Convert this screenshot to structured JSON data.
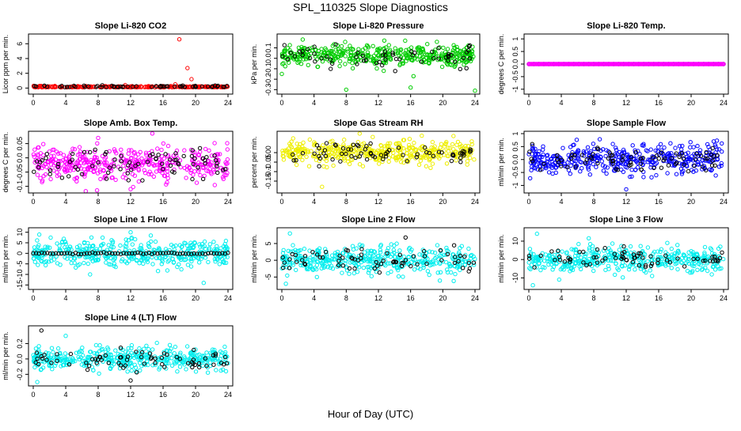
{
  "page": {
    "title": "SPL_110325  Slope Diagnostics",
    "xlabel": "Hour of Day (UTC)"
  },
  "chart_data": [
    {
      "type": "scatter",
      "title": "Slope Li-820 CO2",
      "ylabel": "Licor ppm per min.",
      "xlim": [
        0,
        24
      ],
      "ylim": [
        -0.5,
        7
      ],
      "xticks": [
        0,
        4,
        8,
        12,
        16,
        20,
        24
      ],
      "yticks": [
        0,
        2,
        4,
        6
      ],
      "spread": 0.08,
      "bias": 0.15,
      "series": [
        {
          "color": "#ff0000",
          "n": 230,
          "outliers": [
            [
              18,
              6.6
            ],
            [
              19,
              2.7
            ],
            [
              19.5,
              1.2
            ],
            [
              17.5,
              0.5
            ]
          ]
        },
        {
          "color": "#000000",
          "n": 60,
          "outliers": []
        }
      ]
    },
    {
      "type": "scatter",
      "title": "Slope Li-820 Pressure",
      "ylabel": "kPa per min.",
      "xlim": [
        0,
        24
      ],
      "ylim": [
        -0.32,
        0.21
      ],
      "xticks": [
        0,
        4,
        8,
        12,
        16,
        20,
        24
      ],
      "yticks": [
        -0.3,
        -0.2,
        -0.1,
        0.0,
        0.1
      ],
      "spread": 0.05,
      "bias": 0.03,
      "series": [
        {
          "color": "#00cc00",
          "n": 420,
          "outliers": [
            [
              0,
              -0.15
            ],
            [
              8,
              -0.3
            ],
            [
              16,
              -0.28
            ],
            [
              24,
              -0.31
            ]
          ]
        },
        {
          "color": "#000000",
          "n": 60,
          "outliers": []
        }
      ]
    },
    {
      "type": "scatter",
      "title": "Slope Li-820 Temp.",
      "ylabel": "degrees C per min.",
      "xlim": [
        0,
        24
      ],
      "ylim": [
        -1.1,
        1.1
      ],
      "xticks": [
        0,
        4,
        8,
        12,
        16,
        20,
        24
      ],
      "yticks": [
        -1.0,
        -0.5,
        0.0,
        0.5,
        1.0
      ],
      "spread": 0.0,
      "bias": 0.0,
      "series": [
        {
          "color": "#000000",
          "n": 40,
          "outliers": []
        },
        {
          "color": "#ff00ff",
          "n": 240,
          "outliers": []
        }
      ]
    },
    {
      "type": "scatter",
      "title": "Slope Amb. Box Temp.",
      "ylabel": "degrees C per min.",
      "xlim": [
        0,
        24
      ],
      "ylim": [
        -0.115,
        0.085
      ],
      "xticks": [
        0,
        4,
        8,
        12,
        16,
        20,
        24
      ],
      "yticks": [
        -0.1,
        -0.05,
        0.0,
        0.05
      ],
      "spread": 0.03,
      "bias": -0.02,
      "series": [
        {
          "color": "#ff00ff",
          "n": 420,
          "outliers": [
            [
              12,
              -0.11
            ],
            [
              8,
              0.07
            ]
          ]
        },
        {
          "color": "#000000",
          "n": 80,
          "outliers": []
        }
      ]
    },
    {
      "type": "scatter",
      "title": "Slope Gas Stream RH",
      "ylabel": "percent per min.",
      "xlim": [
        0,
        24
      ],
      "ylim": [
        -0.2,
        0.1
      ],
      "xticks": [
        0,
        4,
        8,
        12,
        16,
        20,
        24
      ],
      "yticks": [
        -0.15,
        -0.1,
        -0.05,
        0.0
      ],
      "spread": 0.03,
      "bias": 0.0,
      "series": [
        {
          "color": "#eeee00",
          "n": 420,
          "outliers": [
            [
              5,
              -0.18
            ]
          ]
        },
        {
          "color": "#000000",
          "n": 70,
          "outliers": []
        }
      ]
    },
    {
      "type": "scatter",
      "title": "Slope Sample Flow",
      "ylabel": "ml/min per min.",
      "xlim": [
        0,
        24
      ],
      "ylim": [
        -1.2,
        1.0
      ],
      "xticks": [
        0,
        4,
        8,
        12,
        16,
        20,
        24
      ],
      "yticks": [
        -1.0,
        -0.5,
        0.0,
        0.5,
        1.0
      ],
      "spread": 0.28,
      "bias": 0.0,
      "series": [
        {
          "color": "#0000ff",
          "n": 420,
          "outliers": [
            [
              12,
              -1.15
            ]
          ]
        },
        {
          "color": "#000000",
          "n": 80,
          "outliers": []
        }
      ]
    },
    {
      "type": "scatter",
      "title": "Slope Line 1 Flow",
      "ylabel": "ml/min per min.",
      "xlim": [
        0,
        24
      ],
      "ylim": [
        -16,
        11
      ],
      "xticks": [
        0,
        4,
        8,
        12,
        16,
        20,
        24
      ],
      "yticks": [
        -15,
        -10,
        -5,
        0,
        5,
        10
      ],
      "spread": 3.0,
      "bias": 0.0,
      "series": [
        {
          "color": "#00eeee",
          "n": 420,
          "outliers": [
            [
              12,
              10
            ],
            [
              21,
              -14
            ],
            [
              7,
              -10
            ]
          ]
        },
        {
          "color": "#000000",
          "n": 70,
          "outliers": []
        }
      ]
    },
    {
      "type": "scatter",
      "title": "Slope Line 2 Flow",
      "ylabel": "ml/min per min.",
      "xlim": [
        0,
        24
      ],
      "ylim": [
        -8,
        9
      ],
      "xticks": [
        0,
        4,
        8,
        12,
        16,
        20,
        24
      ],
      "yticks": [
        -5,
        0,
        5
      ],
      "spread": 2.0,
      "bias": 0.0,
      "series": [
        {
          "color": "#00eeee",
          "n": 420,
          "outliers": [
            [
              1,
              8
            ],
            [
              0.5,
              -7
            ]
          ]
        },
        {
          "color": "#000000",
          "n": 70,
          "outliers": []
        }
      ]
    },
    {
      "type": "scatter",
      "title": "Slope Line 3 Flow",
      "ylabel": "ml/min per min.",
      "xlim": [
        0,
        24
      ],
      "ylim": [
        -15,
        16
      ],
      "xticks": [
        0,
        4,
        8,
        12,
        16,
        20,
        24
      ],
      "yticks": [
        -10,
        0,
        10
      ],
      "spread": 3.5,
      "bias": 0.0,
      "series": [
        {
          "color": "#00eeee",
          "n": 420,
          "outliers": [
            [
              1,
              14
            ],
            [
              0.5,
              -14
            ]
          ]
        },
        {
          "color": "#000000",
          "n": 70,
          "outliers": []
        }
      ]
    },
    {
      "type": "scatter",
      "title": "Slope Line 4 (LT) Flow",
      "ylabel": "ml/min per min.",
      "xlim": [
        0,
        24
      ],
      "ylim": [
        -0.32,
        0.4
      ],
      "xticks": [
        0,
        4,
        8,
        12,
        16,
        20,
        24
      ],
      "yticks": [
        -0.2,
        0.0,
        0.2
      ],
      "spread": 0.07,
      "bias": 0.0,
      "series": [
        {
          "color": "#00eeee",
          "n": 420,
          "outliers": [
            [
              0.5,
              -0.3
            ],
            [
              4,
              0.3
            ]
          ]
        },
        {
          "color": "#000000",
          "n": 70,
          "outliers": [
            [
              1,
              0.37
            ],
            [
              12,
              -0.28
            ]
          ]
        }
      ]
    }
  ]
}
